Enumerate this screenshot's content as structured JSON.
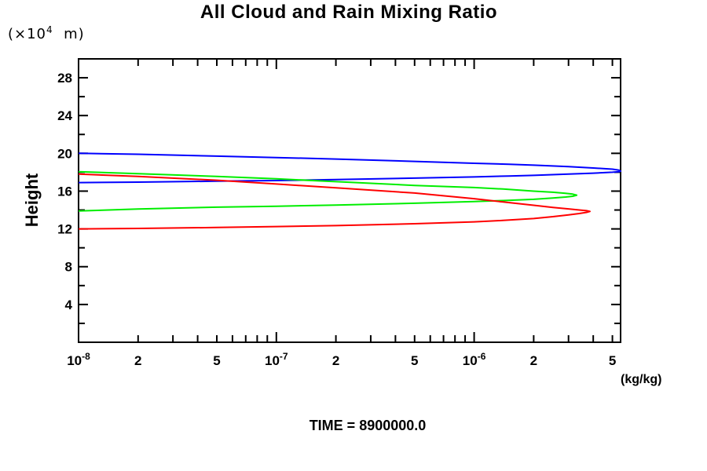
{
  "y_unit": {
    "prefix": "(×10",
    "exp": "4",
    "suffix": "  m)"
  },
  "time_label": "TIME = 8900000.0",
  "chart_data": {
    "type": "line",
    "title": "All Cloud and Rain Mixing Ratio",
    "xlabel": "(kg/kg)",
    "ylabel": "Height",
    "x_scale": "log",
    "xlim": [
      1e-08,
      5.5e-06
    ],
    "ylim": [
      0,
      30
    ],
    "grid": false,
    "legend": "none",
    "frame_color": "#000000",
    "x_tick_labels": [
      {
        "value": 1e-08,
        "text": "10",
        "exp": "-8"
      },
      {
        "value": 2e-08,
        "text": "2"
      },
      {
        "value": 5e-08,
        "text": "5"
      },
      {
        "value": 1e-07,
        "text": "10",
        "exp": "-7"
      },
      {
        "value": 2e-07,
        "text": "2"
      },
      {
        "value": 5e-07,
        "text": "5"
      },
      {
        "value": 1e-06,
        "text": "10",
        "exp": "-6"
      },
      {
        "value": 2e-06,
        "text": "2"
      },
      {
        "value": 5e-06,
        "text": "5"
      }
    ],
    "y_tick_labels": [
      4,
      8,
      12,
      16,
      20,
      24,
      28
    ],
    "y_tick_minor_step": 2,
    "series": [
      {
        "name": "blue-curve",
        "color": "#0000ff",
        "points": [
          [
            1e-08,
            20.0
          ],
          [
            2e-08,
            19.9
          ],
          [
            5e-08,
            19.7
          ],
          [
            1e-07,
            19.55
          ],
          [
            2e-07,
            19.4
          ],
          [
            5e-07,
            19.15
          ],
          [
            1e-06,
            18.95
          ],
          [
            1.5e-06,
            18.85
          ],
          [
            2e-06,
            18.75
          ],
          [
            3e-06,
            18.6
          ],
          [
            4e-06,
            18.45
          ],
          [
            5e-06,
            18.32
          ],
          [
            5.4e-06,
            18.22
          ],
          [
            5.5e-06,
            18.12
          ],
          [
            5.4e-06,
            18.05
          ],
          [
            5e-06,
            18.0
          ],
          [
            4e-06,
            17.9
          ],
          [
            3e-06,
            17.8
          ],
          [
            2e-06,
            17.67
          ],
          [
            1.5e-06,
            17.6
          ],
          [
            1e-06,
            17.5
          ],
          [
            5e-07,
            17.38
          ],
          [
            2e-07,
            17.22
          ],
          [
            1e-07,
            17.12
          ],
          [
            5e-08,
            17.05
          ],
          [
            2e-08,
            16.95
          ],
          [
            1e-08,
            16.9
          ]
        ]
      },
      {
        "name": "green-curve",
        "color": "#00ee00",
        "points": [
          [
            1e-08,
            18.05
          ],
          [
            2e-08,
            17.85
          ],
          [
            5e-08,
            17.55
          ],
          [
            1e-07,
            17.3
          ],
          [
            2e-07,
            17.0
          ],
          [
            5e-07,
            16.6
          ],
          [
            1e-06,
            16.38
          ],
          [
            1.4e-06,
            16.22
          ],
          [
            2e-06,
            16.0
          ],
          [
            2.5e-06,
            15.88
          ],
          [
            2.9e-06,
            15.77
          ],
          [
            3.15e-06,
            15.68
          ],
          [
            3.3e-06,
            15.57
          ],
          [
            3.15e-06,
            15.46
          ],
          [
            2.9e-06,
            15.37
          ],
          [
            2.5e-06,
            15.27
          ],
          [
            2e-06,
            15.13
          ],
          [
            1.4e-06,
            15.0
          ],
          [
            1e-06,
            14.9
          ],
          [
            5e-07,
            14.72
          ],
          [
            2e-07,
            14.52
          ],
          [
            1e-07,
            14.4
          ],
          [
            5e-08,
            14.3
          ],
          [
            2e-08,
            14.1
          ],
          [
            1e-08,
            13.9
          ]
        ]
      },
      {
        "name": "red-curve",
        "color": "#ff0000",
        "points": [
          [
            1e-08,
            17.8
          ],
          [
            2e-08,
            17.55
          ],
          [
            5e-08,
            17.15
          ],
          [
            1e-07,
            16.75
          ],
          [
            2e-07,
            16.35
          ],
          [
            5e-07,
            15.8
          ],
          [
            1e-06,
            15.2
          ],
          [
            1.4e-06,
            14.85
          ],
          [
            2e-06,
            14.5
          ],
          [
            2.5e-06,
            14.28
          ],
          [
            3e-06,
            14.12
          ],
          [
            3.4e-06,
            14.0
          ],
          [
            3.7e-06,
            13.93
          ],
          [
            3.85e-06,
            13.85
          ],
          [
            3.7e-06,
            13.75
          ],
          [
            3.4e-06,
            13.63
          ],
          [
            3e-06,
            13.48
          ],
          [
            2.5e-06,
            13.3
          ],
          [
            2e-06,
            13.1
          ],
          [
            1.4e-06,
            12.9
          ],
          [
            1e-06,
            12.75
          ],
          [
            5e-07,
            12.55
          ],
          [
            2e-07,
            12.35
          ],
          [
            1e-07,
            12.25
          ],
          [
            5e-08,
            12.15
          ],
          [
            2e-08,
            12.05
          ],
          [
            1e-08,
            12.0
          ]
        ]
      }
    ]
  }
}
